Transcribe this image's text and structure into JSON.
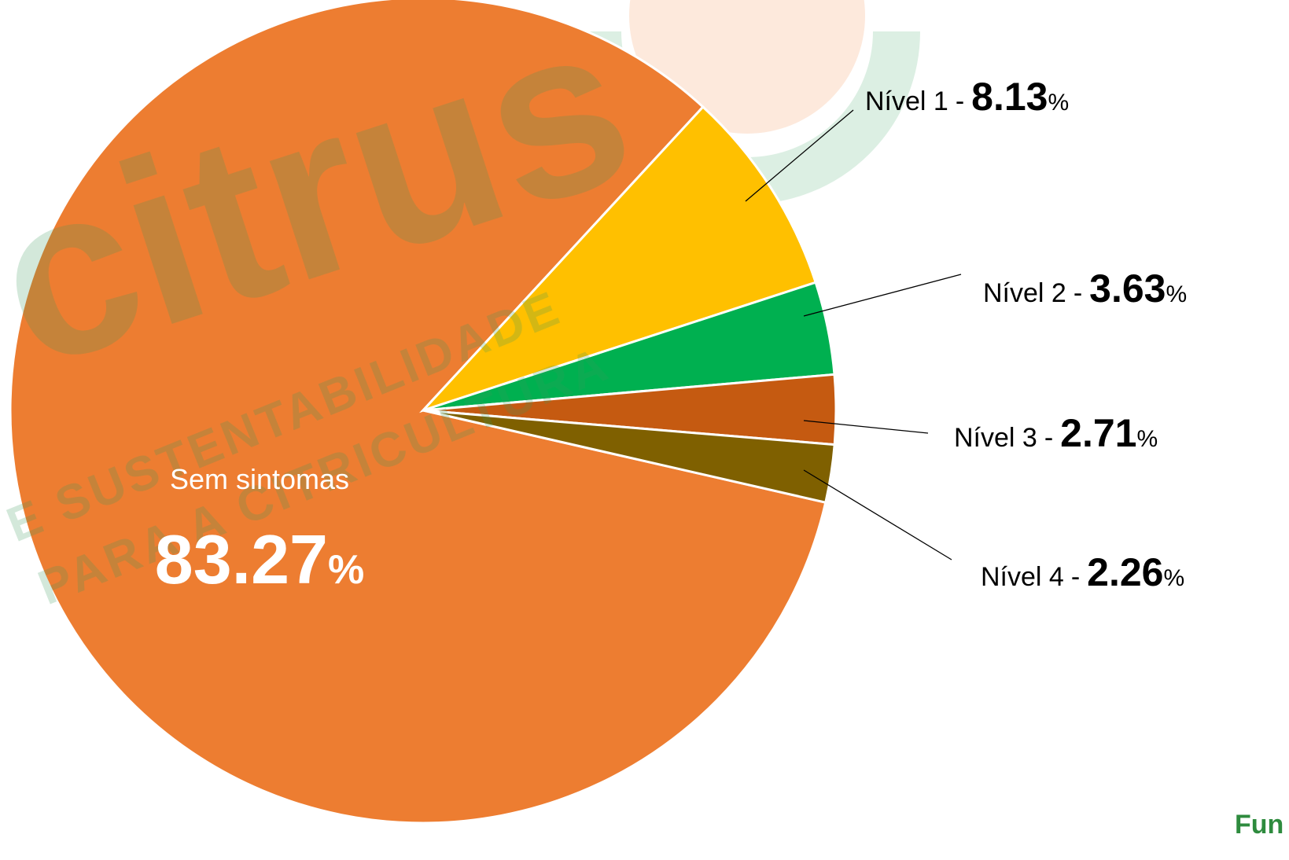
{
  "chart_data": {
    "type": "pie",
    "categories": [
      "Sem sintomas",
      "Nível 1",
      "Nível 2",
      "Nível 3",
      "Nível 4"
    ],
    "values": [
      83.27,
      8.13,
      3.63,
      2.71,
      2.26
    ],
    "colors": [
      "#ED7D31",
      "#FFC000",
      "#00B050",
      "#C55A11",
      "#7F6000"
    ],
    "unit": "%",
    "label_separator": "-",
    "watermark": [
      "citrus",
      "E SUSTENTABILIDADE",
      "PARA A CITRICULTURA"
    ],
    "logo": "Fun"
  }
}
